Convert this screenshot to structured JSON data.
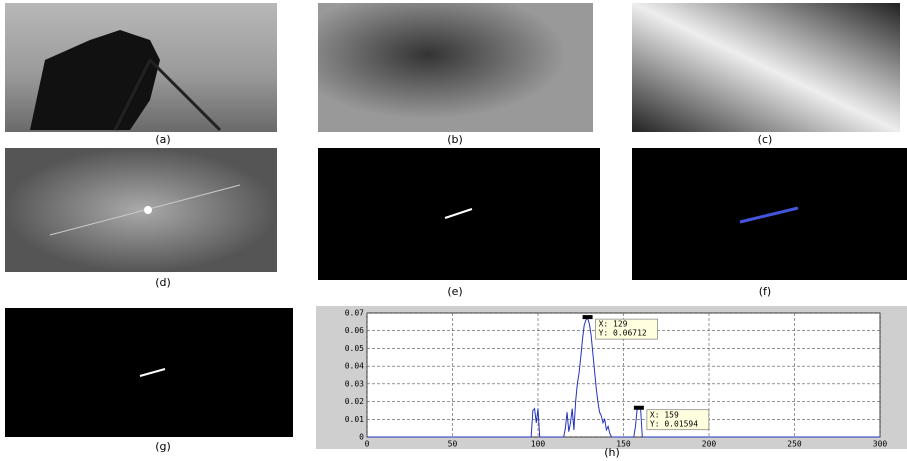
{
  "panels": [
    "(a)",
    "(b)",
    "(c)",
    "(d)",
    "(e)",
    "(f)",
    "(g)",
    "(h)"
  ],
  "chart_data": {
    "type": "line",
    "color": "#2233bb",
    "x": [
      0,
      96,
      97,
      98,
      99,
      100,
      101,
      115,
      116,
      117,
      118,
      119,
      120,
      121,
      122,
      123,
      124,
      125,
      126,
      127,
      128,
      129,
      130,
      131,
      132,
      133,
      134,
      135,
      136,
      137,
      138,
      139,
      140,
      141,
      142,
      143,
      156,
      157,
      158,
      159,
      160,
      161,
      300
    ],
    "values": [
      0,
      0,
      0.015,
      0.016,
      0.008,
      0.016,
      0,
      0,
      0.005,
      0.014,
      0.003,
      0.008,
      0.016,
      0.004,
      0.02,
      0.03,
      0.036,
      0.045,
      0.055,
      0.063,
      0.066,
      0.06712,
      0.064,
      0.058,
      0.048,
      0.038,
      0.028,
      0.02,
      0.014,
      0.012,
      0.008,
      0.01,
      0.004,
      0.006,
      0.002,
      0,
      0,
      0.006,
      0.016,
      0.01594,
      0.016,
      0,
      0
    ],
    "xlim": [
      0,
      300
    ],
    "xticks": [
      0,
      50,
      100,
      150,
      200,
      250,
      300
    ],
    "ylim": [
      0,
      0.07
    ],
    "yticks": [
      0,
      0.01,
      0.02,
      0.03,
      0.04,
      0.05,
      0.06,
      0.07
    ],
    "grid": true,
    "annotations": [
      {
        "x": 129,
        "y": 0.06712,
        "text_x": "X: 129",
        "text_y": "Y: 0.06712"
      },
      {
        "x": 159,
        "y": 0.01594,
        "text_x": "X: 159",
        "text_y": "Y: 0.01594"
      }
    ]
  }
}
